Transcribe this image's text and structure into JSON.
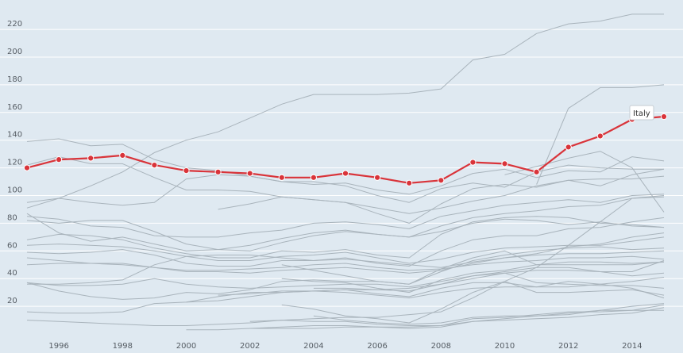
{
  "chart_data": {
    "type": "line",
    "title": "",
    "xlabel": "",
    "ylabel": "",
    "x": [
      1995,
      1996,
      1997,
      1998,
      1999,
      2000,
      2001,
      2002,
      2003,
      2004,
      2005,
      2006,
      2007,
      2008,
      2009,
      2010,
      2011,
      2012,
      2013,
      2014,
      2015
    ],
    "xlim": [
      1995,
      2015.5
    ],
    "ylim": [
      0,
      240
    ],
    "x_ticks": [
      "1996",
      "1998",
      "2000",
      "2002",
      "2004",
      "2006",
      "2008",
      "2010",
      "2012",
      "2014"
    ],
    "y_ticks": [
      "20",
      "40",
      "60",
      "80",
      "100",
      "120",
      "140",
      "160",
      "180",
      "200",
      "220"
    ],
    "grid": true,
    "colors": {
      "background": "#dfe9f1",
      "grid": "#ffffff",
      "context_line": "#a9b4bc",
      "highlight": "#d9343a"
    },
    "highlight": {
      "name": "Italy",
      "values": [
        120,
        126,
        127,
        129,
        122,
        118,
        117,
        116,
        113,
        113,
        116,
        113,
        109,
        111,
        124,
        123,
        117,
        135,
        143,
        155,
        157
      ]
    },
    "context_series": [
      {
        "values": [
          91,
          98,
          107,
          117,
          131,
          140,
          146,
          156,
          166,
          173,
          173,
          173,
          174,
          177,
          198,
          202,
          217,
          224,
          226,
          231,
          231
        ]
      },
      {
        "values": [
          null,
          null,
          null,
          null,
          null,
          null,
          null,
          null,
          null,
          null,
          null,
          null,
          null,
          null,
          null,
          null,
          108,
          163,
          178,
          178,
          180
        ]
      },
      {
        "values": [
          139,
          141,
          136,
          137,
          126,
          120,
          118,
          114,
          110,
          108,
          109,
          104,
          101,
          107,
          116,
          119,
          113,
          118,
          117,
          128,
          125
        ]
      },
      {
        "values": [
          122,
          128,
          123,
          123,
          113,
          104,
          104,
          103,
          99,
          97,
          95,
          87,
          80,
          94,
          105,
          108,
          106,
          111,
          107,
          115,
          119
        ]
      },
      {
        "values": [
          null,
          null,
          null,
          null,
          null,
          null,
          null,
          null,
          null,
          null,
          null,
          null,
          null,
          null,
          null,
          115,
          121,
          127,
          132,
          120,
          88
        ]
      },
      {
        "values": [
          95,
          98,
          95,
          93,
          95,
          112,
          115,
          114,
          110,
          110,
          107,
          100,
          95,
          105,
          109,
          106,
          117,
          122,
          120,
          119,
          119
        ]
      },
      {
        "values": [
          null,
          null,
          null,
          null,
          null,
          null,
          90,
          94,
          99,
          97,
          95,
          91,
          87,
          91,
          96,
          100,
          107,
          111,
          112,
          112,
          114
        ]
      },
      {
        "values": [
          85,
          83,
          78,
          77,
          71,
          70,
          70,
          73,
          75,
          80,
          81,
          79,
          76,
          85,
          89,
          93,
          95,
          97,
          95,
          100,
          101
        ]
      },
      {
        "values": [
          82,
          80,
          82,
          82,
          74,
          65,
          61,
          60,
          66,
          71,
          74,
          72,
          70,
          78,
          84,
          87,
          89,
          92,
          93,
          98,
          99
        ]
      },
      {
        "values": [
          87,
          73,
          67,
          70,
          65,
          60,
          61,
          64,
          69,
          73,
          75,
          72,
          70,
          74,
          80,
          83,
          82,
          79,
          81,
          78,
          77
        ]
      },
      {
        "values": [
          68,
          72,
          71,
          68,
          62,
          58,
          55,
          55,
          60,
          59,
          61,
          57,
          55,
          72,
          81,
          84,
          85,
          84,
          80,
          79,
          77
        ]
      },
      {
        "values": [
          59,
          58,
          59,
          61,
          57,
          51,
          49,
          49,
          53,
          53,
          55,
          51,
          49,
          60,
          68,
          71,
          71,
          76,
          77,
          81,
          84
        ]
      },
      {
        "values": [
          64,
          65,
          64,
          63,
          60,
          56,
          53,
          53,
          56,
          57,
          59,
          55,
          51,
          54,
          59,
          62,
          63,
          64,
          64,
          67,
          70
        ]
      },
      {
        "values": [
          50,
          51,
          51,
          51,
          48,
          45,
          45,
          44,
          46,
          47,
          48,
          46,
          44,
          46,
          51,
          55,
          58,
          63,
          65,
          70,
          73
        ]
      },
      {
        "values": [
          36,
          36,
          37,
          39,
          50,
          56,
          57,
          57,
          55,
          53,
          54,
          52,
          50,
          48,
          52,
          55,
          57,
          58,
          58,
          59,
          60
        ]
      },
      {
        "values": [
          55,
          53,
          51,
          50,
          48,
          46,
          46,
          47,
          48,
          50,
          51,
          48,
          46,
          47,
          50,
          52,
          53,
          55,
          55,
          56,
          54
        ]
      },
      {
        "values": [
          null,
          null,
          null,
          null,
          null,
          null,
          null,
          null,
          50,
          46,
          42,
          38,
          36,
          45,
          53,
          57,
          60,
          62,
          63,
          61,
          62
        ]
      },
      {
        "values": [
          37,
          31,
          27,
          25,
          26,
          30,
          29,
          32,
          38,
          39,
          38,
          38,
          36,
          47,
          55,
          60,
          50,
          52,
          52,
          51,
          52
        ]
      },
      {
        "values": [
          null,
          null,
          null,
          null,
          null,
          null,
          null,
          null,
          40,
          38,
          37,
          33,
          30,
          39,
          44,
          46,
          50,
          50,
          50,
          50,
          52
        ]
      },
      {
        "values": [
          37,
          35,
          35,
          36,
          40,
          36,
          34,
          33,
          34,
          35,
          36,
          36,
          34,
          38,
          42,
          45,
          48,
          48,
          45,
          45,
          53
        ]
      },
      {
        "values": [
          null,
          null,
          null,
          null,
          null,
          null,
          null,
          null,
          null,
          33,
          33,
          32,
          31,
          36,
          40,
          44,
          46,
          46,
          45,
          42,
          44
        ]
      },
      {
        "values": [
          null,
          null,
          null,
          null,
          null,
          null,
          28,
          29,
          31,
          31,
          32,
          32,
          33,
          36,
          42,
          44,
          37,
          36,
          35,
          35,
          33
        ]
      },
      {
        "values": [
          10,
          9,
          8,
          7,
          6,
          6,
          7,
          8,
          10,
          11,
          12,
          12,
          14,
          16,
          26,
          38,
          48,
          64,
          81,
          98,
          100
        ]
      },
      {
        "values": [
          null,
          null,
          null,
          null,
          null,
          null,
          null,
          null,
          21,
          18,
          13,
          11,
          8,
          18,
          30,
          38,
          30,
          30,
          31,
          32,
          28
        ]
      },
      {
        "values": [
          null,
          null,
          null,
          null,
          null,
          23,
          24,
          27,
          30,
          31,
          32,
          29,
          27,
          33,
          37,
          37,
          34,
          38,
          36,
          33,
          26
        ]
      },
      {
        "values": [
          16,
          15,
          15,
          16,
          22,
          23,
          27,
          30,
          30,
          31,
          30,
          28,
          26,
          30,
          33,
          34,
          34,
          34,
          36,
          38,
          41
        ]
      },
      {
        "values": [
          null,
          null,
          null,
          null,
          null,
          3,
          3,
          4,
          5,
          6,
          6,
          5,
          4,
          5,
          9,
          10,
          11,
          12,
          14,
          15,
          19
        ]
      },
      {
        "values": [
          null,
          null,
          null,
          null,
          null,
          null,
          null,
          9,
          10,
          9,
          9,
          7,
          6,
          6,
          11,
          12,
          14,
          16,
          16,
          17,
          21
        ]
      },
      {
        "values": [
          null,
          null,
          null,
          null,
          null,
          null,
          null,
          4,
          4,
          4,
          5,
          5,
          5,
          6,
          9,
          11,
          13,
          14,
          17,
          20,
          22
        ]
      },
      {
        "values": [
          null,
          null,
          null,
          null,
          null,
          null,
          null,
          null,
          null,
          13,
          10,
          8,
          7,
          8,
          12,
          13,
          13,
          15,
          17,
          17,
          17
        ]
      }
    ]
  }
}
